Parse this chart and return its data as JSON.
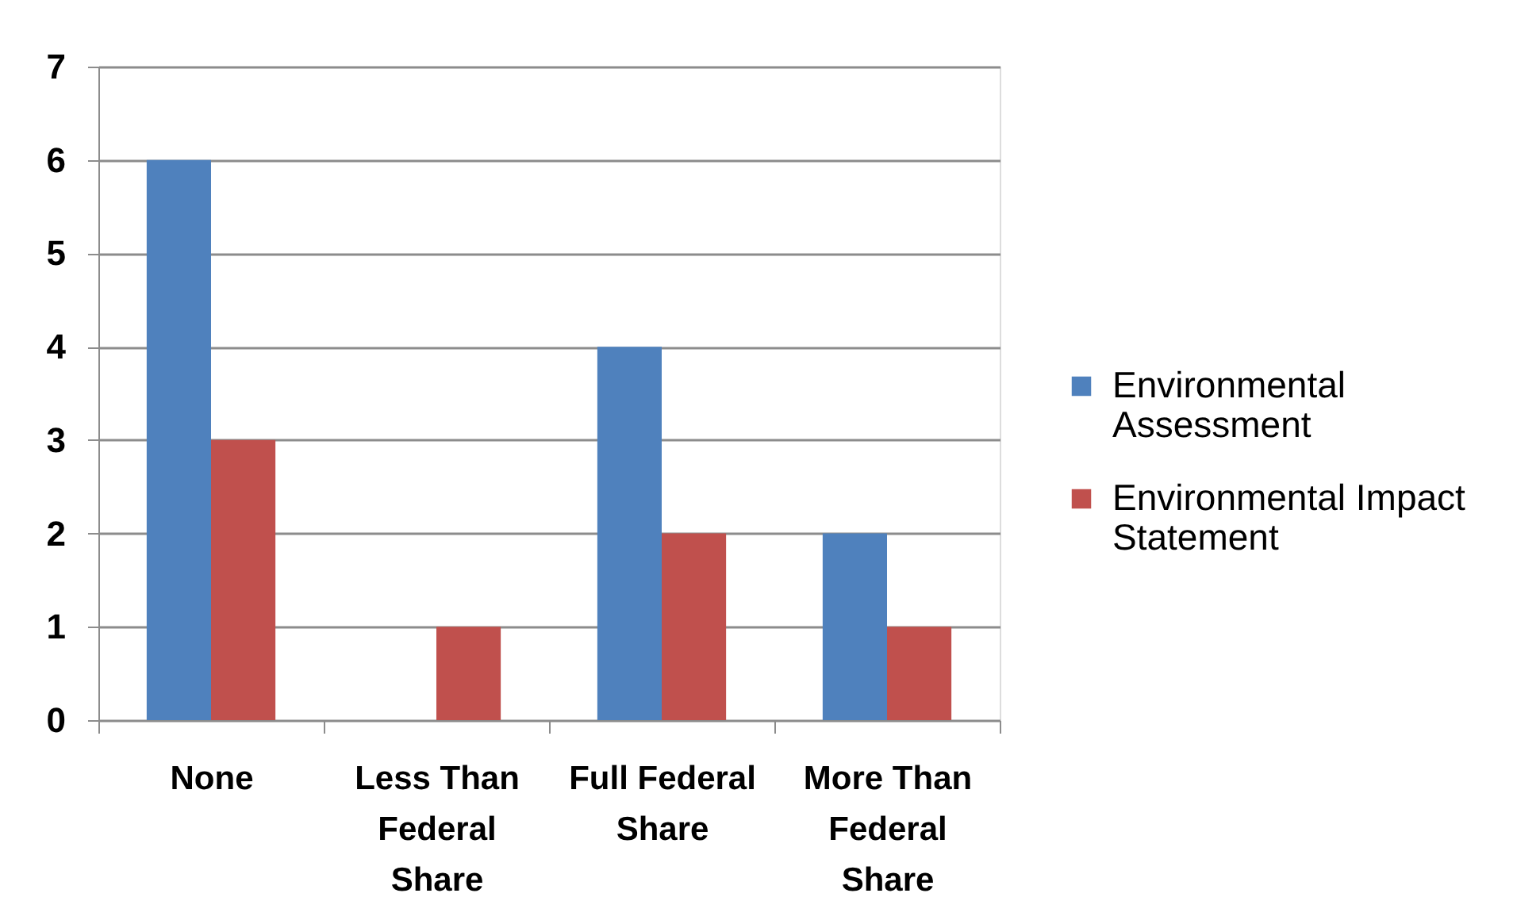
{
  "chart_data": {
    "type": "bar",
    "categories": [
      "None",
      "Less Than Federal Share",
      "Full Federal Share",
      "More Than Federal Share"
    ],
    "series": [
      {
        "name": "Environmental Assessment",
        "color": "#4f81bd",
        "values": [
          6,
          0,
          4,
          2
        ]
      },
      {
        "name": "Environmental Impact Statement",
        "color": "#c0504d",
        "values": [
          3,
          1,
          2,
          1
        ]
      }
    ],
    "ylim": [
      0,
      7
    ],
    "yticks": [
      0,
      1,
      2,
      3,
      4,
      5,
      6,
      7
    ],
    "grid": "y",
    "legend": "right"
  }
}
